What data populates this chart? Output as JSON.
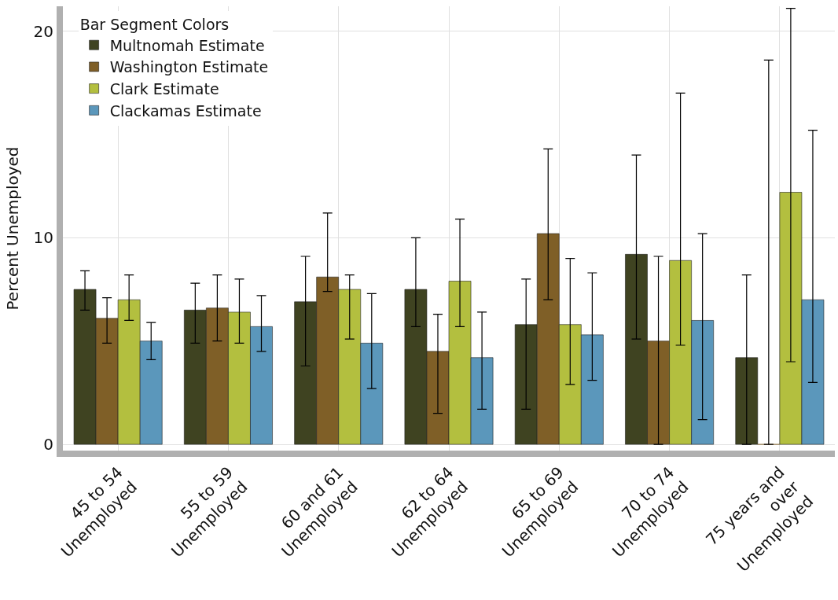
{
  "chart_data": {
    "type": "bar",
    "ylabel": "Percent Unemployed",
    "legend_title": "Bar Segment Colors",
    "categories": [
      "45 to 54\nUnemployed",
      "55 to 59\nUnemployed",
      "60 and 61\nUnemployed",
      "62 to 64\nUnemployed",
      "65 to 69\nUnemployed",
      "70 to 74\nUnemployed",
      "75 years and\nover\nUnemployed"
    ],
    "series": [
      {
        "name": "Multnomah Estimate",
        "color": "#3f4321",
        "values": [
          7.5,
          6.5,
          6.9,
          7.5,
          5.8,
          9.2,
          4.2
        ],
        "errors": [
          [
            6.5,
            8.4
          ],
          [
            4.9,
            7.8
          ],
          [
            3.8,
            9.1
          ],
          [
            5.7,
            10.0
          ],
          [
            1.7,
            8.0
          ],
          [
            5.1,
            14.0
          ],
          [
            0,
            8.2
          ]
        ]
      },
      {
        "name": "Washington Estimate",
        "color": "#7f5f27",
        "values": [
          6.1,
          6.6,
          8.1,
          4.5,
          10.2,
          5.0,
          0
        ],
        "errors": [
          [
            4.9,
            7.1
          ],
          [
            5.0,
            8.2
          ],
          [
            7.4,
            11.2
          ],
          [
            1.5,
            6.3
          ],
          [
            7.0,
            14.3
          ],
          [
            0,
            9.1
          ],
          [
            0,
            18.6
          ]
        ]
      },
      {
        "name": "Clark Estimate",
        "color": "#b3bf3f",
        "values": [
          7.0,
          6.4,
          7.5,
          7.9,
          5.8,
          8.9,
          12.2
        ],
        "errors": [
          [
            6.0,
            8.2
          ],
          [
            4.9,
            8.0
          ],
          [
            5.1,
            8.2
          ],
          [
            5.7,
            10.9
          ],
          [
            2.9,
            9.0
          ],
          [
            4.8,
            17.0
          ],
          [
            4.0,
            21.1
          ]
        ]
      },
      {
        "name": "Clackamas Estimate",
        "color": "#5b97bb",
        "values": [
          5.0,
          5.7,
          4.9,
          4.2,
          5.3,
          6.0,
          7.0
        ],
        "errors": [
          [
            4.1,
            5.9
          ],
          [
            4.5,
            7.2
          ],
          [
            2.7,
            7.3
          ],
          [
            1.7,
            6.4
          ],
          [
            3.1,
            8.3
          ],
          [
            1.2,
            10.2
          ],
          [
            3.0,
            15.2
          ]
        ]
      }
    ],
    "ylim": [
      -0.3,
      21.2
    ],
    "yticks": [
      0,
      10,
      20
    ],
    "grid": true,
    "legend": "top left"
  }
}
